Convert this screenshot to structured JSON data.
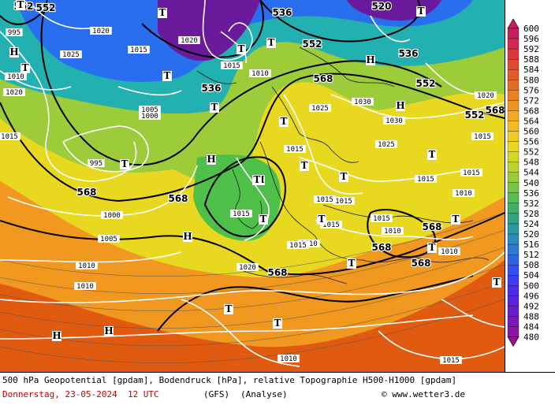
{
  "map": {
    "geopotential_labels": [
      "552",
      "552",
      "536",
      "520",
      "536",
      "552",
      "536",
      "552",
      "568",
      "568",
      "568",
      "568",
      "552",
      "568",
      "568",
      "568",
      "568"
    ],
    "pressure_labels": [
      "995",
      "1020",
      "1020",
      "1015",
      "1025",
      "1010",
      "1015",
      "1030",
      "1030",
      "1015",
      "1025",
      "1010",
      "1005",
      "1000",
      "995",
      "1000",
      "1005",
      "1010",
      "1010",
      "1020",
      "1015",
      "1015",
      "1010",
      "1015",
      "1015",
      "1015",
      "1015",
      "1010",
      "1020",
      "1015",
      "1015",
      "1015",
      "1015",
      "1010",
      "1010",
      "1010",
      "1015",
      "1025",
      "1020"
    ],
    "high_symbol": "H",
    "low_symbol": "T",
    "high_count": 8,
    "low_count": 22,
    "colors": {
      "deep_purple": "#6a1a9a",
      "blue": "#2a6ef0",
      "cyan": "#22b0b0",
      "green": "#4ec04a",
      "yellow": "#e8d820",
      "orange": "#f09820",
      "red_orange": "#e05a10"
    }
  },
  "legend": {
    "levels": [
      "600",
      "596",
      "592",
      "588",
      "584",
      "580",
      "576",
      "572",
      "568",
      "564",
      "560",
      "556",
      "552",
      "548",
      "544",
      "540",
      "536",
      "532",
      "528",
      "524",
      "520",
      "516",
      "512",
      "508",
      "504",
      "500",
      "496",
      "492",
      "488",
      "484",
      "480"
    ],
    "colors": [
      "#c02060",
      "#d02a50",
      "#d8383c",
      "#e04830",
      "#e45a26",
      "#e86c20",
      "#ec801e",
      "#f09420",
      "#f4a824",
      "#f4bc24",
      "#f0cc20",
      "#e8d820",
      "#d4d820",
      "#b8d42a",
      "#98cc36",
      "#78c444",
      "#5abc52",
      "#40b068",
      "#2ea482",
      "#289aa0",
      "#2a8cbc",
      "#2c7ad4",
      "#2e64e4",
      "#3450ee",
      "#3e3cf0",
      "#4a2ce8",
      "#5a24dc",
      "#6a1ccc",
      "#7a18b8",
      "#8a16a4",
      "#96148e"
    ]
  },
  "caption": {
    "line1": "500 hPa Geopotential [gpdam], Bodendruck [hPa], relative Topographie H500-H1000 [gpdam]",
    "date": "Donnerstag, 23-05-2024  12 UTC",
    "model": "(GFS)",
    "run": "(Analyse)",
    "credit": "© www.wetter3.de"
  }
}
